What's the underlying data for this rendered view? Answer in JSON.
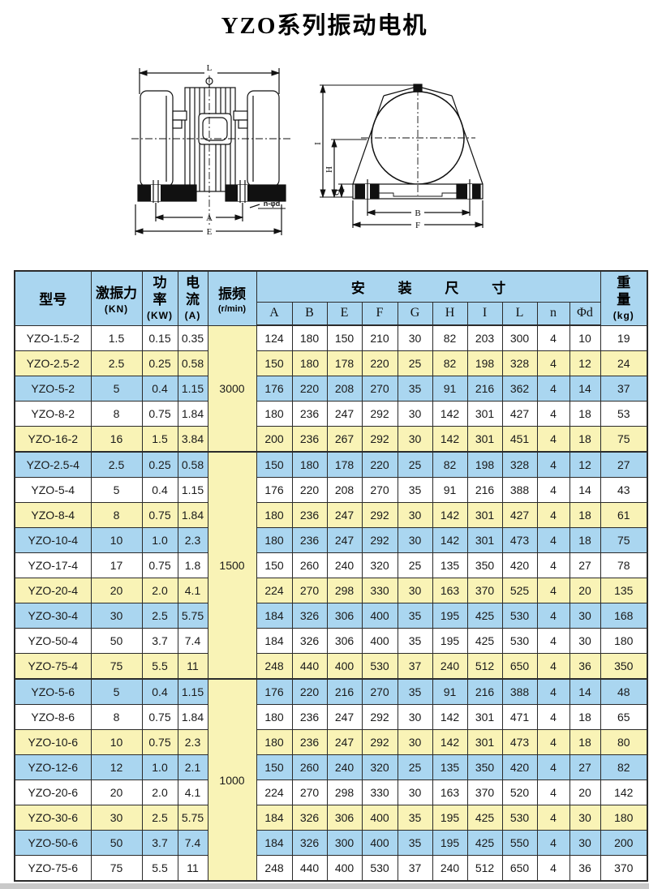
{
  "page": {
    "title": "YZO系列振动电机"
  },
  "drawings": {
    "side_view": {
      "dim_length": "L",
      "dim_bolt_span": "A",
      "dim_base_width": "E",
      "holes_note": "n-φd"
    },
    "front_view": {
      "dim_total_height": "I",
      "dim_center_height": "H",
      "dim_base_height": "G",
      "dim_bolt_span": "B",
      "dim_base_width": "F"
    }
  },
  "table": {
    "headers": {
      "model": "型号",
      "force": "激振力",
      "force_unit": "(KN)",
      "power": "功率",
      "power_unit": "(KW)",
      "current": "电流",
      "current_unit": "(A)",
      "frequency": "振频",
      "frequency_unit": "(r/min)",
      "mounting": "安装尺寸",
      "dims": [
        "A",
        "B",
        "E",
        "F",
        "G",
        "H",
        "I",
        "L",
        "n",
        "Φd"
      ],
      "weight": "重量",
      "weight_unit": "(kg)"
    },
    "row_color_cycle": [
      "white",
      "yellow",
      "blue"
    ],
    "groups": [
      {
        "frequency": "3000",
        "rows": [
          {
            "model": "YZO-1.5-2",
            "force": "1.5",
            "power": "0.15",
            "current": "0.35",
            "dims": [
              "124",
              "180",
              "150",
              "210",
              "30",
              "82",
              "203",
              "300",
              "4",
              "10"
            ],
            "weight": "19"
          },
          {
            "model": "YZO-2.5-2",
            "force": "2.5",
            "power": "0.25",
            "current": "0.58",
            "dims": [
              "150",
              "180",
              "178",
              "220",
              "25",
              "82",
              "198",
              "328",
              "4",
              "12"
            ],
            "weight": "24"
          },
          {
            "model": "YZO-5-2",
            "force": "5",
            "power": "0.4",
            "current": "1.15",
            "dims": [
              "176",
              "220",
              "208",
              "270",
              "35",
              "91",
              "216",
              "362",
              "4",
              "14"
            ],
            "weight": "37"
          },
          {
            "model": "YZO-8-2",
            "force": "8",
            "power": "0.75",
            "current": "1.84",
            "dims": [
              "180",
              "236",
              "247",
              "292",
              "30",
              "142",
              "301",
              "427",
              "4",
              "18"
            ],
            "weight": "53"
          },
          {
            "model": "YZO-16-2",
            "force": "16",
            "power": "1.5",
            "current": "3.84",
            "dims": [
              "200",
              "236",
              "267",
              "292",
              "30",
              "142",
              "301",
              "451",
              "4",
              "18"
            ],
            "weight": "75"
          }
        ]
      },
      {
        "frequency": "1500",
        "rows": [
          {
            "model": "YZO-2.5-4",
            "force": "2.5",
            "power": "0.25",
            "current": "0.58",
            "dims": [
              "150",
              "180",
              "178",
              "220",
              "25",
              "82",
              "198",
              "328",
              "4",
              "12"
            ],
            "weight": "27"
          },
          {
            "model": "YZO-5-4",
            "force": "5",
            "power": "0.4",
            "current": "1.15",
            "dims": [
              "176",
              "220",
              "208",
              "270",
              "35",
              "91",
              "216",
              "388",
              "4",
              "14"
            ],
            "weight": "43"
          },
          {
            "model": "YZO-8-4",
            "force": "8",
            "power": "0.75",
            "current": "1.84",
            "dims": [
              "180",
              "236",
              "247",
              "292",
              "30",
              "142",
              "301",
              "427",
              "4",
              "18"
            ],
            "weight": "61"
          },
          {
            "model": "YZO-10-4",
            "force": "10",
            "power": "1.0",
            "current": "2.3",
            "dims": [
              "180",
              "236",
              "247",
              "292",
              "30",
              "142",
              "301",
              "473",
              "4",
              "18"
            ],
            "weight": "75"
          },
          {
            "model": "YZO-17-4",
            "force": "17",
            "power": "0.75",
            "current": "1.8",
            "dims": [
              "150",
              "260",
              "240",
              "320",
              "25",
              "135",
              "350",
              "420",
              "4",
              "27"
            ],
            "weight": "78"
          },
          {
            "model": "YZO-20-4",
            "force": "20",
            "power": "2.0",
            "current": "4.1",
            "dims": [
              "224",
              "270",
              "298",
              "330",
              "30",
              "163",
              "370",
              "525",
              "4",
              "20"
            ],
            "weight": "135"
          },
          {
            "model": "YZO-30-4",
            "force": "30",
            "power": "2.5",
            "current": "5.75",
            "dims": [
              "184",
              "326",
              "306",
              "400",
              "35",
              "195",
              "425",
              "530",
              "4",
              "30"
            ],
            "weight": "168"
          },
          {
            "model": "YZO-50-4",
            "force": "50",
            "power": "3.7",
            "current": "7.4",
            "dims": [
              "184",
              "326",
              "306",
              "400",
              "35",
              "195",
              "425",
              "530",
              "4",
              "30"
            ],
            "weight": "180"
          },
          {
            "model": "YZO-75-4",
            "force": "75",
            "power": "5.5",
            "current": "11",
            "dims": [
              "248",
              "440",
              "400",
              "530",
              "37",
              "240",
              "512",
              "650",
              "4",
              "36"
            ],
            "weight": "350"
          }
        ]
      },
      {
        "frequency": "1000",
        "rows": [
          {
            "model": "YZO-5-6",
            "force": "5",
            "power": "0.4",
            "current": "1.15",
            "dims": [
              "176",
              "220",
              "216",
              "270",
              "35",
              "91",
              "216",
              "388",
              "4",
              "14"
            ],
            "weight": "48"
          },
          {
            "model": "YZO-8-6",
            "force": "8",
            "power": "0.75",
            "current": "1.84",
            "dims": [
              "180",
              "236",
              "247",
              "292",
              "30",
              "142",
              "301",
              "471",
              "4",
              "18"
            ],
            "weight": "65"
          },
          {
            "model": "YZO-10-6",
            "force": "10",
            "power": "0.75",
            "current": "2.3",
            "dims": [
              "180",
              "236",
              "247",
              "292",
              "30",
              "142",
              "301",
              "473",
              "4",
              "18"
            ],
            "weight": "80"
          },
          {
            "model": "YZO-12-6",
            "force": "12",
            "power": "1.0",
            "current": "2.1",
            "dims": [
              "150",
              "260",
              "240",
              "320",
              "25",
              "135",
              "350",
              "420",
              "4",
              "27"
            ],
            "weight": "82"
          },
          {
            "model": "YZO-20-6",
            "force": "20",
            "power": "2.0",
            "current": "4.1",
            "dims": [
              "224",
              "270",
              "298",
              "330",
              "30",
              "163",
              "370",
              "520",
              "4",
              "20"
            ],
            "weight": "142"
          },
          {
            "model": "YZO-30-6",
            "force": "30",
            "power": "2.5",
            "current": "5.75",
            "dims": [
              "184",
              "326",
              "306",
              "400",
              "35",
              "195",
              "425",
              "530",
              "4",
              "30"
            ],
            "weight": "180"
          },
          {
            "model": "YZO-50-6",
            "force": "50",
            "power": "3.7",
            "current": "7.4",
            "dims": [
              "184",
              "326",
              "300",
              "400",
              "35",
              "195",
              "425",
              "550",
              "4",
              "30"
            ],
            "weight": "200"
          },
          {
            "model": "YZO-75-6",
            "force": "75",
            "power": "5.5",
            "current": "11",
            "dims": [
              "248",
              "440",
              "400",
              "530",
              "37",
              "240",
              "512",
              "650",
              "4",
              "36"
            ],
            "weight": "370"
          }
        ]
      }
    ]
  },
  "colors": {
    "header_blue": "#aad6f0",
    "row_blue": "#aad6f0",
    "row_yellow": "#f9f3b6",
    "freq_yellow": "#f9f3b6",
    "border": "#2b2b2b",
    "bottom_bar": "#c9c9c9"
  }
}
